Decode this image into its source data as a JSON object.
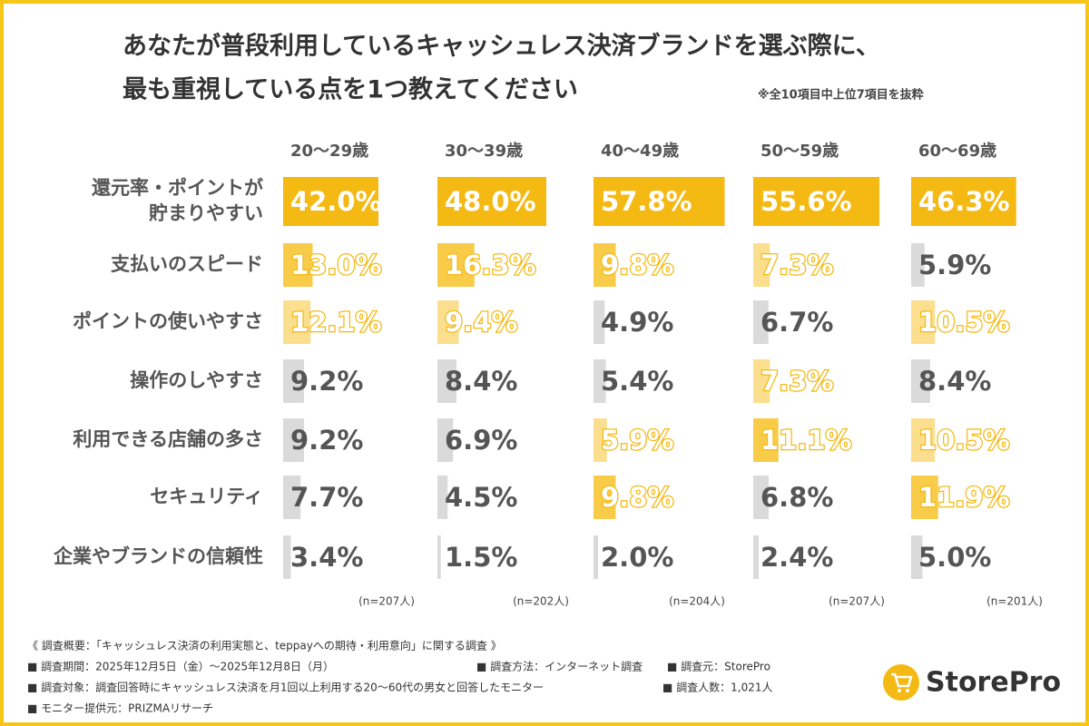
{
  "chart_data": {
    "type": "bar",
    "title": [
      "あなたが普段利用しているキャッシュレス決済ブランドを選ぶ際に、",
      "最も重視している点を1つ教えてください"
    ],
    "note": "※全10項目中上位7項目を抜粋",
    "categories": [
      "還元率・ポイントが\n貯まりやすい",
      "支払いのスピード",
      "ポイントの使いやすさ",
      "操作のしやすさ",
      "利用できる店舗の多さ",
      "セキュリティ",
      "企業やブランドの信頼性"
    ],
    "xlim": [
      0,
      60
    ],
    "accent_color": "#F5B913",
    "base_color": "#DADADA",
    "series": [
      {
        "name": "20〜29歳",
        "sample": "(n=207人)",
        "values": [
          42.0,
          13.0,
          12.1,
          9.2,
          9.2,
          7.7,
          3.4
        ],
        "value_labels": [
          "42.0%",
          "13.0%",
          "12.1%",
          "9.2%",
          "9.2%",
          "7.7%",
          "3.4%"
        ],
        "colors": [
          "#F5B913",
          "#F8CB48",
          "#FBDF8F",
          "#DADADA",
          "#DADADA",
          "#DADADA",
          "#DADADA"
        ]
      },
      {
        "name": "30〜39歳",
        "sample": "(n=202人)",
        "values": [
          48.0,
          16.3,
          9.4,
          8.4,
          6.9,
          4.5,
          1.5
        ],
        "value_labels": [
          "48.0%",
          "16.3%",
          "9.4%",
          "8.4%",
          "6.9%",
          "4.5%",
          "1.5%"
        ],
        "colors": [
          "#F5B913",
          "#F8CB48",
          "#FBDF8F",
          "#DADADA",
          "#DADADA",
          "#DADADA",
          "#DADADA"
        ]
      },
      {
        "name": "40〜49歳",
        "sample": "(n=204人)",
        "values": [
          57.8,
          9.8,
          4.9,
          5.4,
          5.9,
          9.8,
          2.0
        ],
        "value_labels": [
          "57.8%",
          "9.8%",
          "4.9%",
          "5.4%",
          "5.9%",
          "9.8%",
          "2.0%"
        ],
        "colors": [
          "#F5B913",
          "#F8CB48",
          "#DADADA",
          "#DADADA",
          "#FBDF8F",
          "#F8CB48",
          "#DADADA"
        ]
      },
      {
        "name": "50〜59歳",
        "sample": "(n=207人)",
        "values": [
          55.6,
          7.3,
          6.7,
          7.3,
          11.1,
          6.8,
          2.4
        ],
        "value_labels": [
          "55.6%",
          "7.3%",
          "6.7%",
          "7.3%",
          "11.1%",
          "6.8%",
          "2.4%"
        ],
        "colors": [
          "#F5B913",
          "#FBDF8F",
          "#DADADA",
          "#FBDF8F",
          "#F8CB48",
          "#DADADA",
          "#DADADA"
        ]
      },
      {
        "name": "60〜69歳",
        "sample": "(n=201人)",
        "values": [
          46.3,
          5.9,
          10.5,
          8.4,
          10.5,
          11.9,
          5.0
        ],
        "value_labels": [
          "46.3%",
          "5.9%",
          "10.5%",
          "8.4%",
          "10.5%",
          "11.9%",
          "5.0%"
        ],
        "colors": [
          "#F5B913",
          "#DADADA",
          "#FBDF8F",
          "#DADADA",
          "#FBDF8F",
          "#F8CB48",
          "#DADADA"
        ]
      }
    ]
  },
  "footer": {
    "summary": "《 調査概要：「キャッシュレス決済の利用実態と、teppayへの期待・利用意向」に関する調査 》",
    "period": "■ 調査期間：2025年12月5日（金）〜2025年12月8日（月）",
    "method": "■ 調査方法：インターネット調査",
    "source": "■ 調査元：StorePro",
    "target": "■ 調査対象：調査回答時にキャッシュレス決済を月1回以上利用する20〜60代の男女と回答したモニター",
    "count": "■ 調査人数：1,021人",
    "provider": "■ モニター提供元：PRIZMAリサーチ",
    "logo": "StorePro"
  }
}
